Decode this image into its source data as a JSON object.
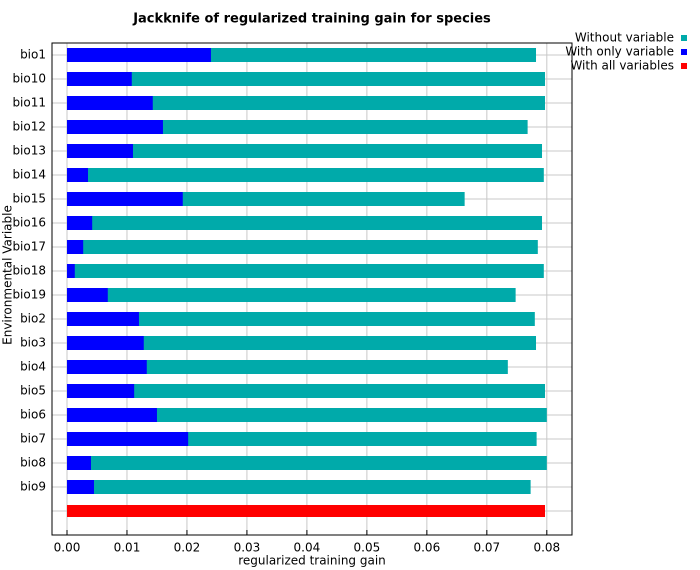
{
  "chart_data": {
    "type": "bar",
    "orientation": "horizontal",
    "overlap": true,
    "title": "Jackknife of regularized training gain for species",
    "xlabel": "regularized training gain",
    "ylabel": "Environmental Variable",
    "categories": [
      "bio1",
      "bio10",
      "bio11",
      "bio12",
      "bio13",
      "bio14",
      "bio15",
      "bio16",
      "bio17",
      "bio18",
      "bio19",
      "bio2",
      "bio3",
      "bio4",
      "bio5",
      "bio6",
      "bio7",
      "bio8",
      "bio9",
      null
    ],
    "series": [
      {
        "name": "Without variable",
        "color": "#00aaaa",
        "values": [
          0.0782,
          0.0797,
          0.0797,
          0.0768,
          0.0792,
          0.0795,
          0.0663,
          0.0792,
          0.0785,
          0.0795,
          0.0748,
          0.078,
          0.0782,
          0.0735,
          0.0797,
          0.08,
          0.0783,
          0.08,
          0.0773,
          null
        ]
      },
      {
        "name": "With only variable",
        "color": "#0000ff",
        "values": [
          0.024,
          0.0108,
          0.0143,
          0.016,
          0.011,
          0.0035,
          0.0193,
          0.0042,
          0.0027,
          0.0013,
          0.0068,
          0.012,
          0.0128,
          0.0133,
          0.0112,
          0.015,
          0.0202,
          0.004,
          0.0045,
          null
        ]
      },
      {
        "name": "With all variables",
        "color": "#ff0000",
        "values": [
          null,
          null,
          null,
          null,
          null,
          null,
          null,
          null,
          null,
          null,
          null,
          null,
          null,
          null,
          null,
          null,
          null,
          null,
          null,
          0.0797
        ]
      }
    ],
    "xlim": [
      -0.0025,
      0.0842
    ],
    "xticks": [
      {
        "value": 0,
        "label": "0.00"
      },
      {
        "value": 0.01,
        "label": "0.01"
      },
      {
        "value": 0.02,
        "label": "0.02"
      },
      {
        "value": 0.03,
        "label": "0.03"
      },
      {
        "value": 0.04,
        "label": "0.04"
      },
      {
        "value": 0.05,
        "label": "0.05"
      },
      {
        "value": 0.06,
        "label": "0.06"
      },
      {
        "value": 0.07,
        "label": "0.07"
      },
      {
        "value": 0.08,
        "label": "0.08"
      }
    ],
    "grid": true,
    "legend": "top-right"
  }
}
